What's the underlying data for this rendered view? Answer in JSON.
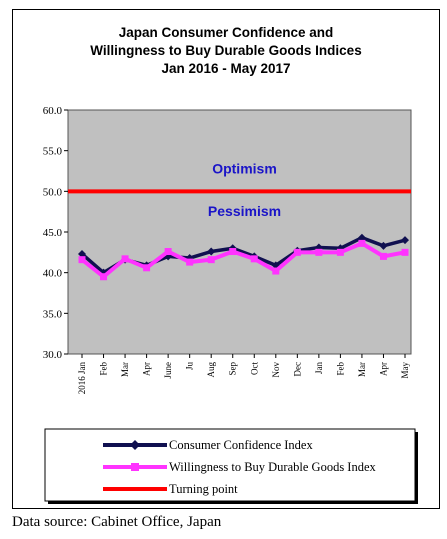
{
  "source_text": "Data source: Cabinet Office, Japan",
  "chart_data": {
    "type": "line",
    "title": [
      "Japan Consumer Confidence and",
      "Willingness to Buy Durable Goods Indices",
      "Jan 2016 - May 2017"
    ],
    "xlabel": "",
    "ylabel": "",
    "ylim": [
      30,
      60
    ],
    "yticks": [
      "30.0",
      "35.0",
      "40.0",
      "45.0",
      "50.0",
      "55.0",
      "60.0"
    ],
    "categories": [
      "2016 Jan",
      "Feb",
      "Mar",
      "Apr",
      "June",
      "Ju",
      "Aug",
      "Sep",
      "Oct",
      "Nov",
      "Dec",
      "Jan",
      "Feb",
      "Mar",
      "Apr",
      "May"
    ],
    "series": [
      {
        "name": "Consumer Confidence Index",
        "color": "#101050",
        "values": [
          42.3,
          40.0,
          41.6,
          40.9,
          42.0,
          41.8,
          42.6,
          43.0,
          42.0,
          40.9,
          42.7,
          43.1,
          43.0,
          44.3,
          43.3,
          44.0
        ]
      },
      {
        "name": "Willingness to Buy Durable Goods Index",
        "color": "#ff33ff",
        "values": [
          41.6,
          39.5,
          41.7,
          40.6,
          42.6,
          41.3,
          41.6,
          42.6,
          41.7,
          40.2,
          42.5,
          42.5,
          42.5,
          43.6,
          42.0,
          42.5
        ]
      }
    ],
    "reference_line": {
      "name": "Turning point",
      "value": 50,
      "color": "#ff0000"
    },
    "annotations": [
      {
        "text": "Optimism",
        "y": 52.8
      },
      {
        "text": "Pessimism",
        "y": 47.6
      }
    ],
    "plot_background": "#c0c0c0",
    "grid": false,
    "legend_position": "bottom"
  }
}
